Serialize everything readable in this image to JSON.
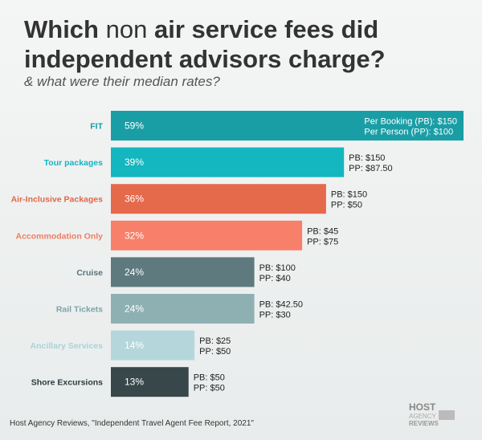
{
  "chart_data": {
    "type": "bar",
    "orientation": "horizontal",
    "title_parts": [
      "Which",
      "non",
      "air service fees did",
      "independent advisors charge?"
    ],
    "subtitle": "& what were their median rates?",
    "categories": [
      "FIT",
      "Tour packages",
      "Air-Inclusive Packages",
      "Accommodation Only",
      "Cruise",
      "Rail Tickets",
      "Ancillary Services",
      "Shore Excursions"
    ],
    "values": [
      59,
      39,
      36,
      32,
      24,
      24,
      14,
      13
    ],
    "value_labels": [
      "59%",
      "39%",
      "36%",
      "32%",
      "24%",
      "24%",
      "14%",
      "13%"
    ],
    "colors": [
      "#1a9ea6",
      "#14b6bf",
      "#e5694b",
      "#f8806a",
      "#5e7a7f",
      "#8fb0b3",
      "#b5d7db",
      "#37474a"
    ],
    "label_colors": [
      "#1a9ba3",
      "#15b5bf",
      "#e0684a",
      "#f07d62",
      "#5a7379",
      "#7fa3a7",
      "#a9d3d7",
      "#2b3a3f"
    ],
    "rates": [
      [
        "Per Booking (PB): $150",
        "Per Person (PP): $100"
      ],
      [
        "PB: $150",
        "PP: $87.50"
      ],
      [
        "PB: $150",
        "PP: $50"
      ],
      [
        "PB: $45",
        "PP: $75"
      ],
      [
        "PB: $100",
        "PP: $40"
      ],
      [
        "PB: $42.50",
        "PP: $30"
      ],
      [
        "PB: $25",
        "PP: $50"
      ],
      [
        "PB: $50",
        "PP: $50"
      ]
    ],
    "source": "Host Agency Reviews, \"Independent Travel Agent Fee Report, 2021\"",
    "logo": [
      "HOST",
      "AGENCY",
      "REVIEWS"
    ]
  }
}
